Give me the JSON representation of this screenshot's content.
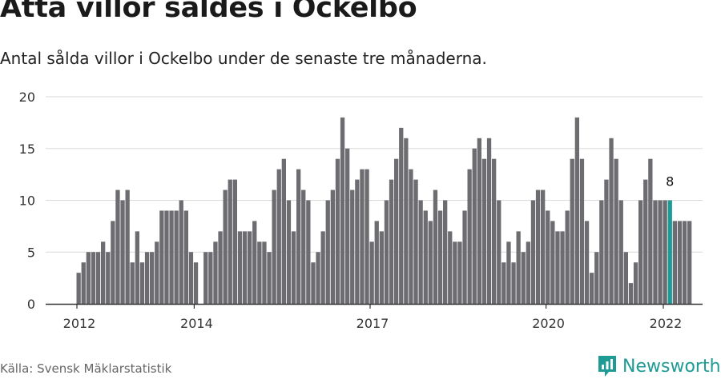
{
  "title": "Åtta villor såldes i Ockelbo",
  "subtitle": "Antal sålda villor i Ockelbo under de senaste tre månaderna.",
  "source": "Källa: Svensk Mäklarstatistik",
  "brand": "Newsworthy",
  "colors": {
    "bar": "#6d6c70",
    "highlight": "#1f9b95",
    "grid": "#d9d9d9",
    "axis": "#333333",
    "text": "#333333"
  },
  "chart_data": {
    "type": "bar",
    "title": "Åtta villor såldes i Ockelbo",
    "xlabel": "",
    "ylabel": "",
    "ylim": [
      0,
      20
    ],
    "yticks": [
      0,
      5,
      10,
      15,
      20
    ],
    "grid": true,
    "start": "2012-01",
    "values": [
      3,
      4,
      5,
      5,
      5,
      6,
      5,
      8,
      11,
      10,
      11,
      4,
      7,
      4,
      5,
      5,
      6,
      9,
      9,
      9,
      9,
      10,
      9,
      5,
      4,
      0,
      5,
      5,
      6,
      7,
      11,
      12,
      12,
      7,
      7,
      7,
      8,
      6,
      6,
      5,
      11,
      13,
      14,
      10,
      7,
      13,
      11,
      10,
      4,
      5,
      7,
      10,
      11,
      14,
      18,
      15,
      11,
      12,
      13,
      13,
      6,
      8,
      7,
      10,
      12,
      14,
      17,
      16,
      13,
      12,
      10,
      9,
      8,
      11,
      9,
      10,
      7,
      6,
      6,
      9,
      13,
      15,
      16,
      14,
      16,
      14,
      10,
      4,
      6,
      4,
      7,
      5,
      6,
      10,
      11,
      11,
      9,
      8,
      7,
      7,
      9,
      14,
      18,
      14,
      8,
      3,
      5,
      10,
      12,
      16,
      14,
      10,
      5,
      2,
      4,
      10,
      12,
      14,
      10,
      10,
      10,
      10,
      8,
      8,
      8,
      8
    ],
    "xtick_labels": [
      {
        "label": "2012",
        "index": 0
      },
      {
        "label": "2014",
        "index": 24
      },
      {
        "label": "2017",
        "index": 60
      },
      {
        "label": "2020",
        "index": 96
      },
      {
        "label": "2022",
        "index": 120
      }
    ],
    "highlight_index": 121,
    "highlight_label": "8"
  }
}
